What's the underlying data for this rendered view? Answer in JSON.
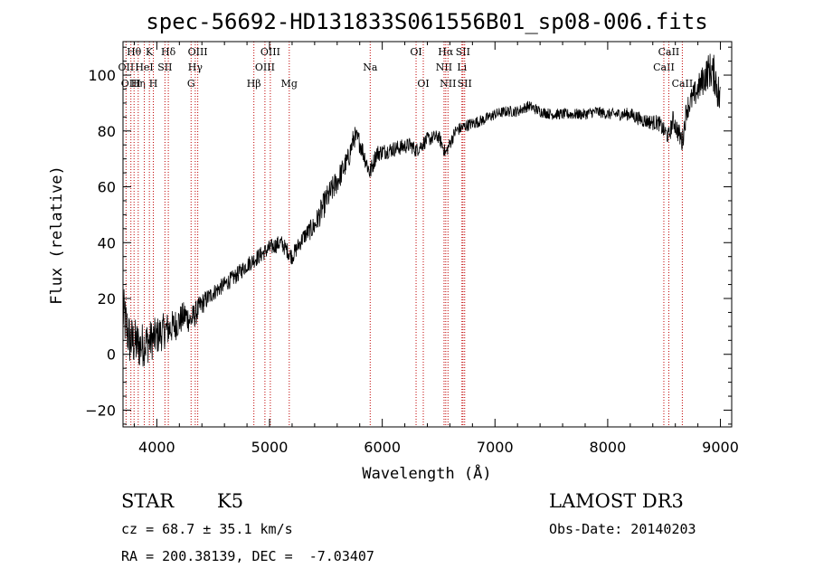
{
  "chart_data": {
    "type": "line",
    "title": "spec-56692-HD131833S061556B01_sp08-006.fits",
    "xlabel": "Wavelength (Å)",
    "ylabel": "Flux (relative)",
    "xlim": [
      3700,
      9100
    ],
    "ylim": [
      -26,
      112
    ],
    "xticks": [
      4000,
      5000,
      6000,
      7000,
      8000,
      9000
    ],
    "yticks": [
      -20,
      0,
      20,
      40,
      60,
      80,
      100
    ],
    "spectrum_anchors": [
      [
        3700,
        15
      ],
      [
        3760,
        5
      ],
      [
        3850,
        3
      ],
      [
        3950,
        5
      ],
      [
        4050,
        8
      ],
      [
        4150,
        10
      ],
      [
        4250,
        14
      ],
      [
        4300,
        12
      ],
      [
        4400,
        18
      ],
      [
        4500,
        22
      ],
      [
        4600,
        25
      ],
      [
        4700,
        28
      ],
      [
        4800,
        32
      ],
      [
        4900,
        35
      ],
      [
        5000,
        38
      ],
      [
        5100,
        40
      ],
      [
        5200,
        35
      ],
      [
        5300,
        42
      ],
      [
        5400,
        46
      ],
      [
        5500,
        55
      ],
      [
        5600,
        62
      ],
      [
        5700,
        70
      ],
      [
        5750,
        78
      ],
      [
        5800,
        76
      ],
      [
        5850,
        70
      ],
      [
        5890,
        65
      ],
      [
        5950,
        72
      ],
      [
        6050,
        73
      ],
      [
        6150,
        74
      ],
      [
        6250,
        75
      ],
      [
        6300,
        73
      ],
      [
        6400,
        77
      ],
      [
        6500,
        78
      ],
      [
        6562,
        72
      ],
      [
        6650,
        80
      ],
      [
        6750,
        82
      ],
      [
        6900,
        84
      ],
      [
        7000,
        86
      ],
      [
        7100,
        87
      ],
      [
        7200,
        87
      ],
      [
        7300,
        89
      ],
      [
        7400,
        87
      ],
      [
        7500,
        86
      ],
      [
        7600,
        86
      ],
      [
        7700,
        86
      ],
      [
        7800,
        86
      ],
      [
        7900,
        87
      ],
      [
        8000,
        86
      ],
      [
        8100,
        86
      ],
      [
        8200,
        86
      ],
      [
        8300,
        84
      ],
      [
        8400,
        83
      ],
      [
        8450,
        83
      ],
      [
        8500,
        80
      ],
      [
        8542,
        78
      ],
      [
        8580,
        84
      ],
      [
        8662,
        76
      ],
      [
        8700,
        88
      ],
      [
        8800,
        95
      ],
      [
        8900,
        102
      ],
      [
        8950,
        100
      ],
      [
        9000,
        90
      ]
    ],
    "spectrum_noise": [
      [
        3700,
        10
      ],
      [
        4000,
        7
      ],
      [
        4300,
        5
      ],
      [
        4500,
        3
      ],
      [
        5300,
        3
      ],
      [
        5500,
        5
      ],
      [
        6000,
        3
      ],
      [
        7000,
        2
      ],
      [
        8000,
        2
      ],
      [
        8500,
        3
      ],
      [
        8800,
        5
      ],
      [
        9000,
        8
      ]
    ],
    "line_marks": [
      {
        "wl": 3727,
        "labels": [
          "OII"
        ],
        "rows": [
          1
        ]
      },
      {
        "wl": 3770,
        "labels": [
          "OIII"
        ],
        "rows": [
          2
        ]
      },
      {
        "wl": 3798,
        "labels": [
          "Hθ"
        ],
        "rows": [
          0
        ]
      },
      {
        "wl": 3835,
        "labels": [
          "Hη"
        ],
        "rows": [
          2
        ]
      },
      {
        "wl": 3889,
        "labels": [
          "HeI"
        ],
        "rows": [
          1
        ]
      },
      {
        "wl": 3934,
        "labels": [
          "K"
        ],
        "rows": [
          0
        ]
      },
      {
        "wl": 3969,
        "labels": [
          "H"
        ],
        "rows": [
          2
        ]
      },
      {
        "wl": 4072,
        "labels": [
          "SII"
        ],
        "rows": [
          1
        ]
      },
      {
        "wl": 4102,
        "labels": [
          "Hδ"
        ],
        "rows": [
          0
        ]
      },
      {
        "wl": 4304,
        "labels": [
          "G"
        ],
        "rows": [
          2
        ]
      },
      {
        "wl": 4341,
        "labels": [
          "Hγ"
        ],
        "rows": [
          1
        ]
      },
      {
        "wl": 4363,
        "labels": [
          "OIII"
        ],
        "rows": [
          0
        ]
      },
      {
        "wl": 4861,
        "labels": [
          "Hβ"
        ],
        "rows": [
          2
        ]
      },
      {
        "wl": 4959,
        "labels": [
          "OIII"
        ],
        "rows": [
          1
        ]
      },
      {
        "wl": 5007,
        "labels": [
          "OIII"
        ],
        "rows": [
          0
        ]
      },
      {
        "wl": 5175,
        "labels": [
          "Mg"
        ],
        "rows": [
          2
        ]
      },
      {
        "wl": 5893,
        "labels": [
          "Na"
        ],
        "rows": [
          1
        ]
      },
      {
        "wl": 6300,
        "labels": [
          "OI"
        ],
        "rows": [
          0
        ]
      },
      {
        "wl": 6364,
        "labels": [
          "OI"
        ],
        "rows": [
          2
        ]
      },
      {
        "wl": 6548,
        "labels": [
          "NII"
        ],
        "rows": [
          1
        ]
      },
      {
        "wl": 6563,
        "labels": [
          "Hα"
        ],
        "rows": [
          0
        ]
      },
      {
        "wl": 6583,
        "labels": [
          "NII"
        ],
        "rows": [
          2
        ]
      },
      {
        "wl": 6707,
        "labels": [
          "Li"
        ],
        "rows": [
          1
        ]
      },
      {
        "wl": 6716,
        "labels": [
          "SII"
        ],
        "rows": [
          0
        ]
      },
      {
        "wl": 6731,
        "labels": [
          "SII"
        ],
        "rows": [
          2
        ]
      },
      {
        "wl": 8498,
        "labels": [
          "CaII"
        ],
        "rows": [
          1
        ]
      },
      {
        "wl": 8542,
        "labels": [
          "CaII"
        ],
        "rows": [
          0
        ]
      },
      {
        "wl": 8662,
        "labels": [
          "CaII"
        ],
        "rows": [
          2
        ]
      }
    ]
  },
  "info": {
    "classification": "STAR",
    "subclass": "K5",
    "survey": "LAMOST DR3",
    "cz": "cz = 68.7 ± 35.1 km/s",
    "obs_date": "Obs-Date: 20140203",
    "coords": "RA = 200.38139, DEC =  -7.03407"
  },
  "colors": {
    "line_marker": "#c00000",
    "spectrum": "#000000"
  }
}
